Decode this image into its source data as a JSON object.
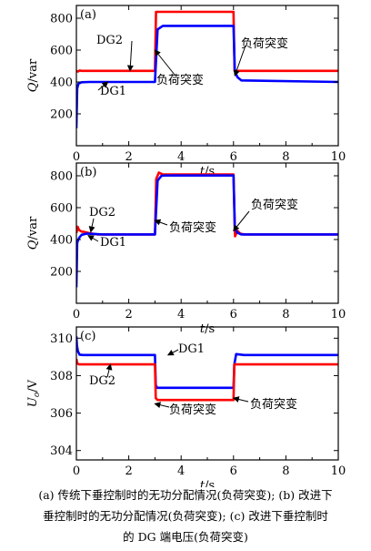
{
  "chart_data": [
    {
      "type": "line",
      "panel_label": "(a)",
      "xlabel": "t/s",
      "ylabel": "Q/var",
      "xlim": [
        0,
        10
      ],
      "ylim": [
        0,
        880
      ],
      "xticks": [
        "0",
        "2",
        "4",
        "6",
        "8",
        "10"
      ],
      "yticks": [
        "200",
        "400",
        "600",
        "800"
      ],
      "grid": false,
      "annotations": [
        "DG2",
        "DG1",
        "负荷突变",
        "负荷突变"
      ],
      "series": [
        {
          "name": "DG2",
          "color": "#ff0000",
          "x": [
            0,
            0.06,
            0.12,
            0.2,
            3.0,
            3.04,
            3.12,
            6.0,
            6.04,
            6.15,
            10
          ],
          "y": [
            470,
            465,
            472,
            470,
            470,
            840,
            840,
            840,
            470,
            470,
            470
          ]
        },
        {
          "name": "DG1",
          "color": "#0000ff",
          "x": [
            0,
            0.03,
            0.08,
            0.2,
            0.5,
            3.0,
            3.1,
            3.3,
            6.0,
            6.05,
            6.15,
            6.3,
            10
          ],
          "y": [
            110,
            360,
            390,
            398,
            400,
            400,
            730,
            752,
            752,
            470,
            430,
            410,
            400
          ]
        }
      ]
    },
    {
      "type": "line",
      "panel_label": "(b)",
      "xlabel": "t/s",
      "ylabel": "Q/var",
      "xlim": [
        0,
        10
      ],
      "ylim": [
        0,
        880
      ],
      "xticks": [
        "0",
        "2",
        "4",
        "6",
        "8",
        "10"
      ],
      "yticks": [
        "200",
        "400",
        "600",
        "800"
      ],
      "grid": false,
      "annotations": [
        "DG2",
        "DG1",
        "负荷突变",
        "负荷突变"
      ],
      "series": [
        {
          "name": "DG2",
          "color": "#ff0000",
          "x": [
            0,
            0.05,
            0.1,
            0.2,
            0.3,
            0.5,
            0.8,
            3.0,
            3.05,
            3.15,
            3.3,
            6.0,
            6.06,
            6.15,
            6.25,
            6.4,
            10
          ],
          "y": [
            440,
            480,
            460,
            450,
            448,
            440,
            432,
            432,
            780,
            820,
            808,
            808,
            420,
            455,
            438,
            432,
            432
          ]
        },
        {
          "name": "DG1",
          "color": "#0000ff",
          "x": [
            0,
            0.03,
            0.1,
            0.2,
            0.4,
            0.7,
            1.0,
            3.0,
            3.1,
            3.25,
            3.4,
            6.0,
            6.05,
            6.15,
            6.3,
            10
          ],
          "y": [
            100,
            380,
            410,
            430,
            437,
            435,
            432,
            432,
            770,
            800,
            802,
            802,
            470,
            442,
            432,
            432
          ]
        }
      ]
    },
    {
      "type": "line",
      "panel_label": "(c)",
      "xlabel": "t/s",
      "ylabel": "Uo/V",
      "xlim": [
        0,
        10
      ],
      "ylim": [
        303.5,
        310.6
      ],
      "xticks": [
        "0",
        "2",
        "4",
        "6",
        "8",
        "10"
      ],
      "yticks": [
        "304",
        "306",
        "308",
        "310"
      ],
      "grid": false,
      "annotations": [
        "DG1",
        "DG2",
        "负荷突变",
        "负荷突变"
      ],
      "series": [
        {
          "name": "DG1",
          "color": "#0000ff",
          "x": [
            0,
            0.02,
            0.06,
            0.12,
            0.25,
            3.0,
            3.03,
            3.08,
            6.0,
            6.03,
            6.1,
            6.4,
            10
          ],
          "y": [
            310.1,
            309.6,
            309.3,
            309.12,
            309.1,
            309.1,
            307.5,
            307.35,
            307.35,
            308.6,
            309.15,
            309.1,
            309.1
          ]
        },
        {
          "name": "DG2",
          "color": "#ff0000",
          "x": [
            0,
            0.03,
            0.1,
            0.3,
            3.0,
            3.03,
            3.1,
            6.0,
            6.03,
            6.15,
            10
          ],
          "y": [
            308.9,
            308.65,
            308.6,
            308.6,
            308.6,
            306.8,
            306.7,
            306.7,
            308.6,
            308.6,
            308.6
          ]
        }
      ]
    }
  ],
  "caption": [
    "(a) 传统下垂控制时的无功分配情况(负荷突变); (b) 改进下",
    "垂控制时的无功分配情况(负荷突变); (c) 改进下垂控制时",
    "的 DG 端电压(负荷突变)"
  ]
}
